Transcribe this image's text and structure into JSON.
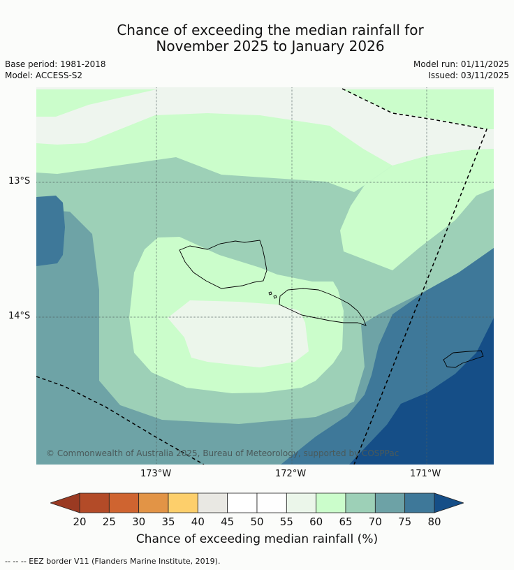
{
  "title": {
    "line1": "Chance of exceeding the median rainfall for",
    "line2": "November 2025 to January 2026"
  },
  "meta": {
    "base_period": "Base period: 1981-2018",
    "model": "Model: ACCESS-S2",
    "model_run": "Model run: 01/11/2025",
    "issued": "Issued: 03/11/2025"
  },
  "axes": {
    "lat_labels": [
      "13°S",
      "14°S"
    ],
    "lon_labels": [
      "173°W",
      "172°W",
      "171°W"
    ]
  },
  "copyright": "© Commonwealth of Australia 2025, Bureau of Meteorology, supported by COSPPac",
  "colorbar": {
    "title": "Chance of exceeding median rainfall (%)",
    "ticks": [
      "20",
      "25",
      "30",
      "35",
      "40",
      "45",
      "50",
      "55",
      "60",
      "65",
      "70",
      "75",
      "80"
    ],
    "colors": [
      "#b34b28",
      "#cf6430",
      "#e29446",
      "#fdcf6b",
      "#e9e8e3",
      "#ffffff",
      "#fefefe",
      "#ebf6ea",
      "#cbfdcb",
      "#9dd0b7",
      "#6da2a6",
      "#3e7899"
    ],
    "low_extend_color": "#9a3a22",
    "high_extend_color": "#154e87"
  },
  "footer": "-- -- -- EEZ border V11 (Flanders Marine Institute, 2019).",
  "colors": {
    "c40_45": "#eef5ee",
    "c50_55": "#ecf6eb",
    "c60_65": "#cbfdcb",
    "c65_70": "#9dd0b7",
    "c70_75": "#6ea3a6",
    "c75_80": "#3e7899",
    "c80_plus": "#154e87"
  }
}
